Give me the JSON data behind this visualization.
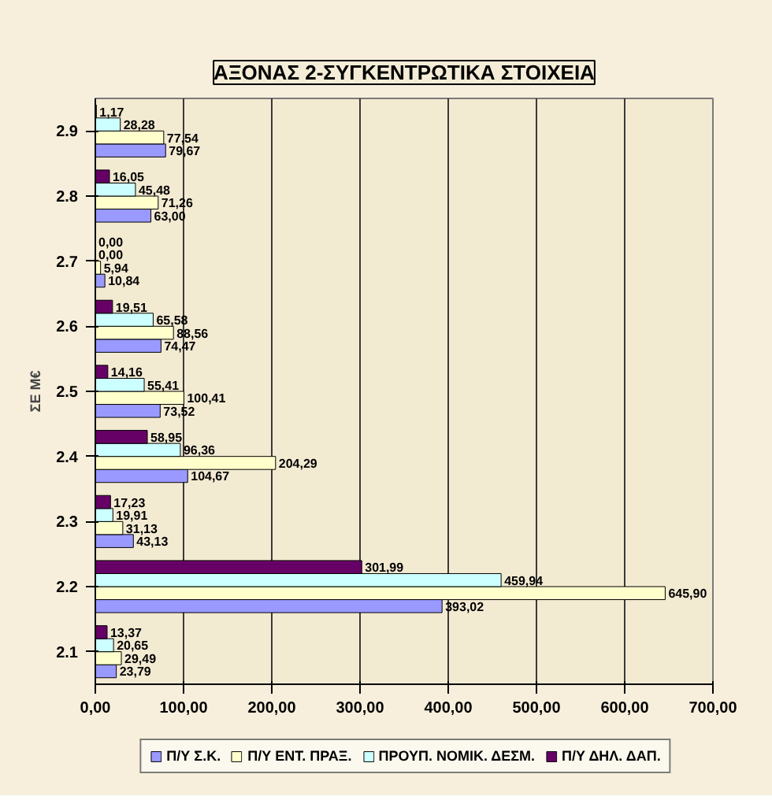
{
  "chart_data": {
    "type": "bar",
    "orientation": "horizontal",
    "title": "ΑΞΟΝΑΣ 2-ΣΥΓΚΕΝΤΡΩΤΙΚΑ ΣΤΟΙΧΕΙΑ",
    "ylabel": "ΣΕ Μ€",
    "categories": [
      "2.9",
      "2.8",
      "2.7",
      "2.6",
      "2.5",
      "2.4",
      "2.3",
      "2.2",
      "2.1"
    ],
    "series": [
      {
        "name": "Π/Υ Σ.Κ.",
        "color": "#9999ff",
        "values": [
          79.67,
          63.0,
          10.84,
          74.47,
          73.52,
          104.67,
          43.13,
          393.02,
          23.79
        ],
        "value_labels": [
          "79,67",
          "63,00",
          "10,84",
          "74,47",
          "73,52",
          "104,67",
          "43,13",
          "393,02",
          "23,79"
        ]
      },
      {
        "name": "Π/Υ ΕΝΤ. ΠΡΑΞ.",
        "color": "#ffffcc",
        "values": [
          77.54,
          71.26,
          5.94,
          88.56,
          100.41,
          204.29,
          31.13,
          645.9,
          29.49
        ],
        "value_labels": [
          "77,54",
          "71,26",
          "5,94",
          "88,56",
          "100,41",
          "204,29",
          "31,13",
          "645,90",
          "29,49"
        ]
      },
      {
        "name": "ΠΡΟΥΠ. ΝΟΜΙΚ. ΔΕΣΜ.",
        "color": "#ccffff",
        "values": [
          28.28,
          45.48,
          0.0,
          65.58,
          55.41,
          96.36,
          19.91,
          459.94,
          20.65
        ],
        "value_labels": [
          "28,28",
          "45,48",
          "0,00",
          "65,58",
          "55,41",
          "96,36",
          "19,91",
          "459,94",
          "20,65"
        ]
      },
      {
        "name": "Π/Υ ΔΗΛ. ΔΑΠ.",
        "color": "#660066",
        "values": [
          1.17,
          16.05,
          0.0,
          19.51,
          14.16,
          58.95,
          17.23,
          301.99,
          13.37
        ],
        "value_labels": [
          "1,17",
          "16,05",
          "0,00",
          "19,51",
          "14,16",
          "58,95",
          "17,23",
          "301,99",
          "13,37"
        ]
      }
    ],
    "xlim": [
      0,
      700
    ],
    "xticks": [
      {
        "value": 0,
        "label": "0,00"
      },
      {
        "value": 100,
        "label": "100,00"
      },
      {
        "value": 200,
        "label": "200,00"
      },
      {
        "value": 300,
        "label": "300,00"
      },
      {
        "value": 400,
        "label": "400,00"
      },
      {
        "value": 500,
        "label": "500,00"
      },
      {
        "value": 600,
        "label": "600,00"
      },
      {
        "value": 700,
        "label": "700,00"
      }
    ],
    "grid": "x",
    "legend": "bottom"
  }
}
